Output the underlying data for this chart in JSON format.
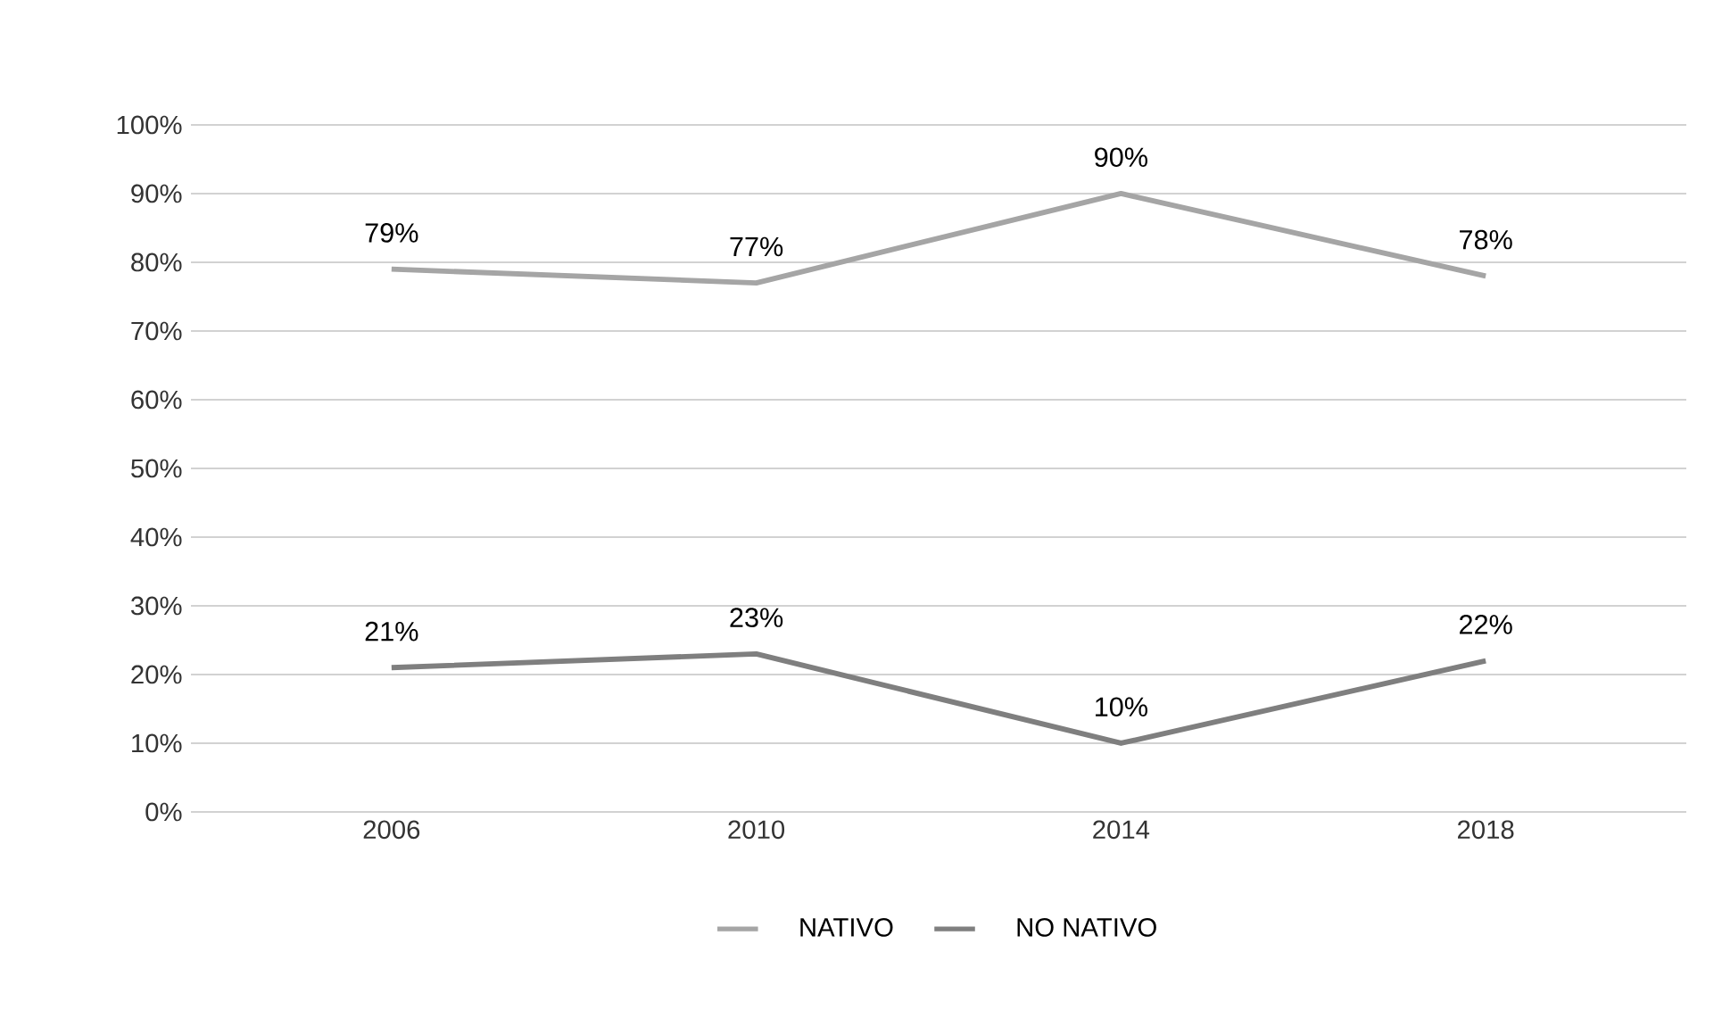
{
  "chart_data": {
    "type": "line",
    "categories": [
      "2006",
      "2010",
      "2014",
      "2018"
    ],
    "series": [
      {
        "name": "NATIVO",
        "color": "#a5a5a5",
        "values": [
          79,
          77,
          90,
          78
        ],
        "value_labels": [
          "79%",
          "77%",
          "90%",
          "78%"
        ]
      },
      {
        "name": "NO NATIVO",
        "color": "#7f7f7f",
        "values": [
          21,
          23,
          10,
          22
        ],
        "value_labels": [
          "21%",
          "23%",
          "10%",
          "22%"
        ]
      }
    ],
    "ylim": [
      0,
      100
    ],
    "yticks": [
      {
        "value": 0,
        "label": "0%"
      },
      {
        "value": 10,
        "label": "10%"
      },
      {
        "value": 20,
        "label": "20%"
      },
      {
        "value": 30,
        "label": "30%"
      },
      {
        "value": 40,
        "label": "40%"
      },
      {
        "value": 50,
        "label": "50%"
      },
      {
        "value": 60,
        "label": "60%"
      },
      {
        "value": 70,
        "label": "70%"
      },
      {
        "value": 80,
        "label": "80%"
      },
      {
        "value": 90,
        "label": "90%"
      },
      {
        "value": 100,
        "label": "100%"
      }
    ],
    "grid": "y",
    "legend": "bottom",
    "marker": "none",
    "line_style": "solid"
  }
}
